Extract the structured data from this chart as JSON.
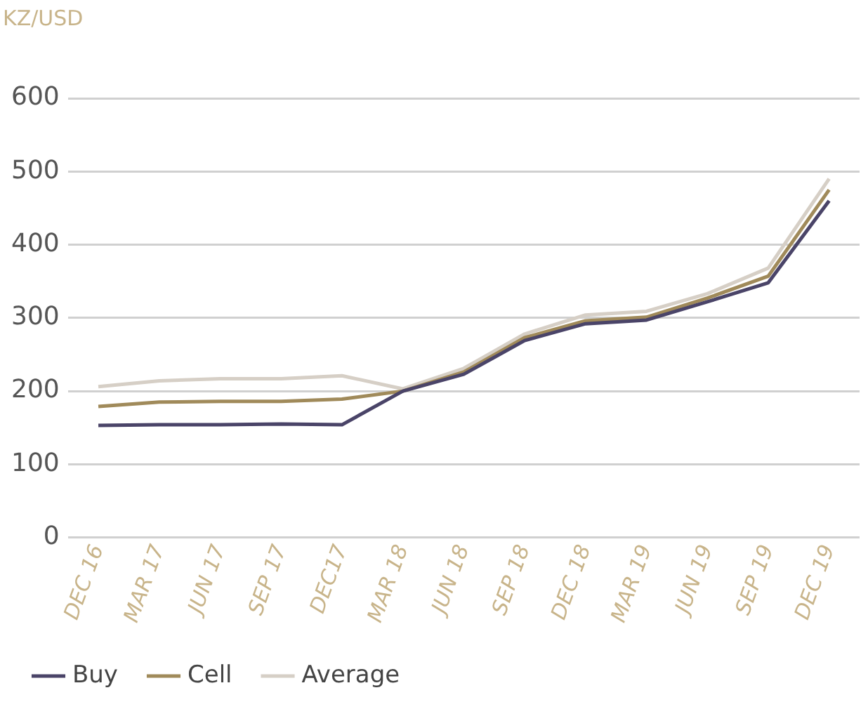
{
  "chart_data": {
    "type": "line",
    "ylabel": "KZ/USD",
    "categories": [
      "DEC 16",
      "MAR 17",
      "JUN 17",
      "SEP 17",
      "DEC17",
      "MAR 18",
      "JUN 18",
      "SEP 18",
      "DEC 18",
      "MAR 19",
      "JUN 19",
      "SEP 19",
      "DEC 19"
    ],
    "series": [
      {
        "name": "Buy",
        "color": "#4a4468",
        "values": [
          153,
          154,
          154,
          155,
          154,
          200,
          223,
          269,
          292,
          297,
          322,
          348,
          460
        ]
      },
      {
        "name": "Cell",
        "color": "#a08a5a",
        "values": [
          179,
          185,
          186,
          186,
          189,
          200,
          226,
          273,
          296,
          301,
          327,
          357,
          475
        ]
      },
      {
        "name": "Average",
        "color": "#d6cfc6",
        "values": [
          206,
          214,
          217,
          217,
          221,
          203,
          231,
          278,
          304,
          309,
          333,
          368,
          490
        ]
      }
    ],
    "ylim": [
      0,
      600
    ],
    "yticks": [
      0,
      100,
      200,
      300,
      400,
      500,
      600
    ],
    "grid": "y",
    "legend": "bottom left",
    "marker": "none",
    "line_style": "solid"
  }
}
